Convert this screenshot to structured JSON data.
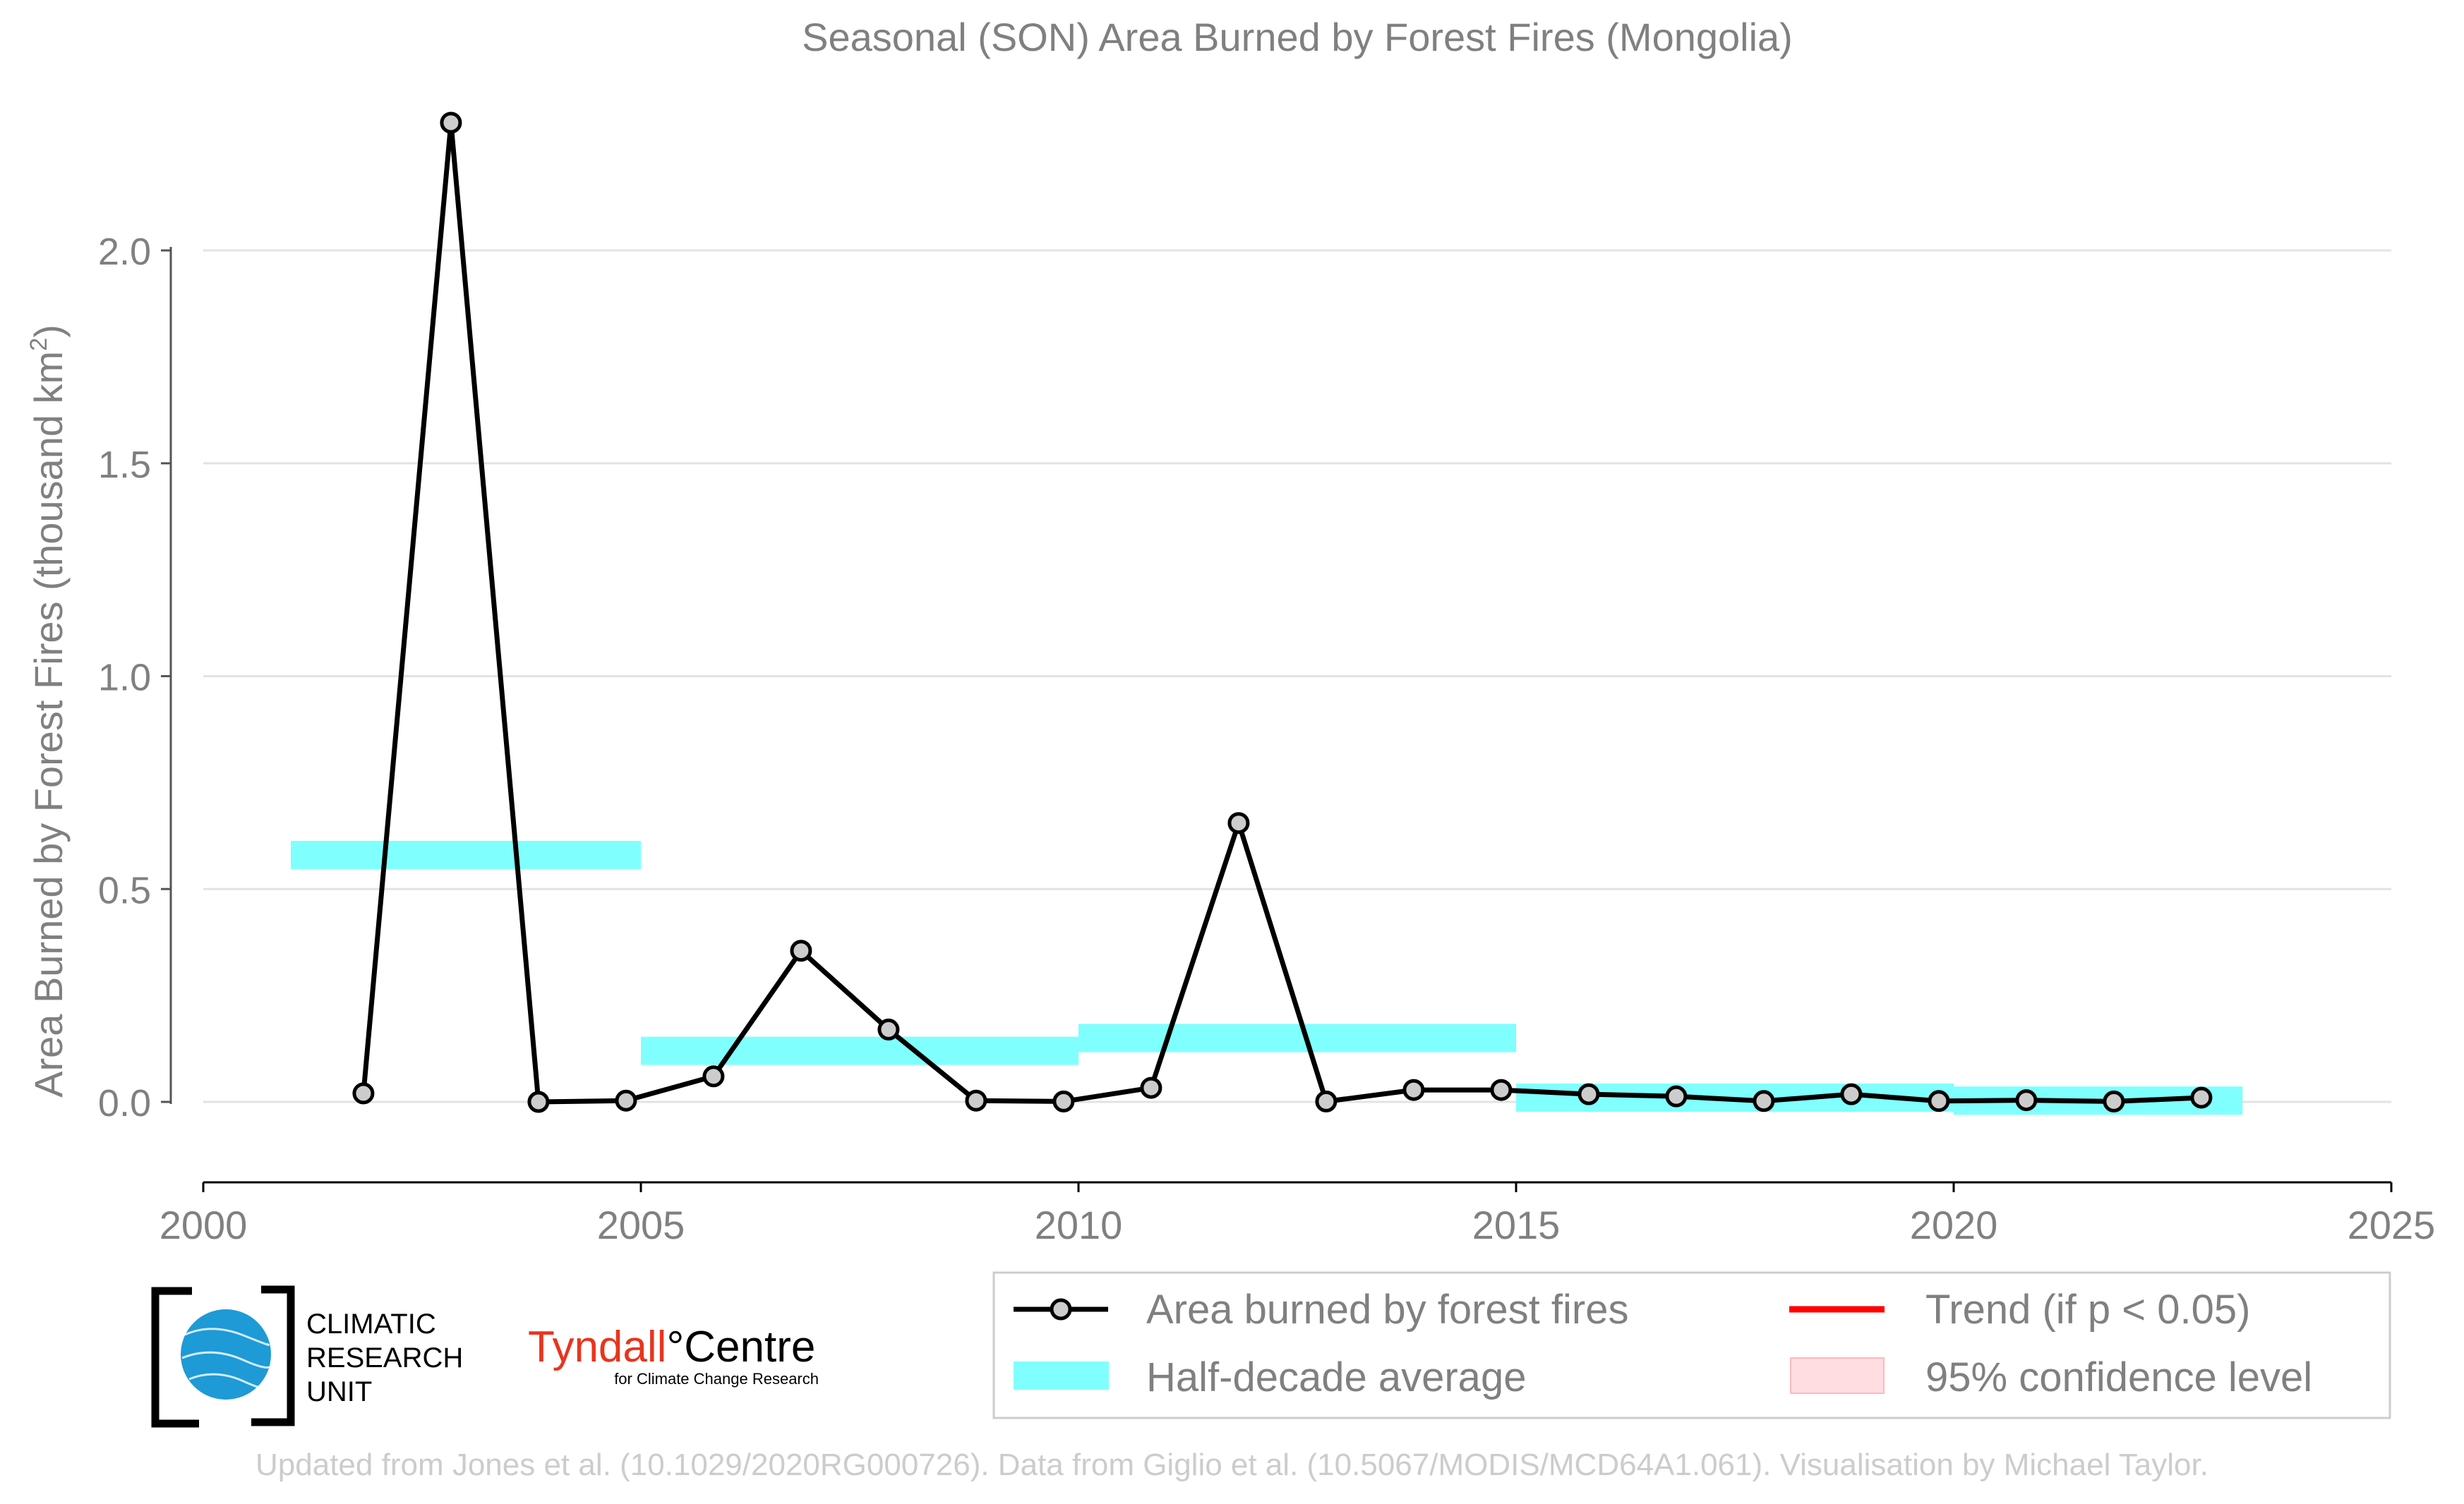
{
  "chart_data": {
    "type": "line",
    "title": "Seasonal (SON) Area Burned by Forest Fires (Mongolia)",
    "xlabel": "",
    "ylabel": "Area Burned by Forest Fires (thousand km²)",
    "ylabel_main": "Area Burned by Forest Fires (thousand km",
    "ylabel_sup": "2",
    "ylabel_close": ")",
    "xlim": [
      2000,
      2025
    ],
    "ylim": [
      -0.18,
      2.45
    ],
    "x_ticks": [
      "2000",
      "2005",
      "2010",
      "2015",
      "2020",
      "2025"
    ],
    "y_ticks": [
      "0.0",
      "0.5",
      "1.0",
      "1.5",
      "2.0"
    ],
    "y_tick_values": [
      0,
      0.5,
      1.0,
      1.5,
      2.0
    ],
    "x_tick_values": [
      2000,
      2005,
      2010,
      2015,
      2020,
      2025
    ],
    "grid": "horizontal",
    "series": [
      {
        "name": "Area burned by forest fires",
        "color": "#000000",
        "marker_fill": "#cccccc",
        "x": [
          2001.83,
          2002.83,
          2003.83,
          2004.83,
          2005.83,
          2006.83,
          2007.83,
          2008.83,
          2009.83,
          2010.83,
          2011.83,
          2012.83,
          2013.83,
          2014.83,
          2015.83,
          2016.83,
          2017.83,
          2018.83,
          2019.83,
          2020.83,
          2021.83,
          2022.83
        ],
        "values": [
          0.02,
          2.3,
          0.0,
          0.003,
          0.06,
          0.355,
          0.17,
          0.003,
          0.001,
          0.033,
          0.655,
          0.001,
          0.028,
          0.028,
          0.018,
          0.013,
          0.002,
          0.018,
          0.002,
          0.004,
          0.001,
          0.01
        ]
      }
    ],
    "half_decade_average": {
      "name": "Half-decade average",
      "color": "#80ffff",
      "periods": [
        {
          "start": 2001,
          "end": 2005,
          "value": 0.58
        },
        {
          "start": 2005,
          "end": 2010,
          "value": 0.12
        },
        {
          "start": 2010,
          "end": 2015,
          "value": 0.15
        },
        {
          "start": 2015,
          "end": 2020,
          "value": 0.01
        },
        {
          "start": 2020,
          "end": 2023.3,
          "value": 0.003
        }
      ]
    },
    "legend": {
      "placement": "bottom-right",
      "entries": [
        {
          "label": "Area burned by forest fires",
          "kind": "line-marker",
          "color": "#000000"
        },
        {
          "label": "Trend (if p < 0.05)",
          "kind": "line",
          "color": "#ff0000"
        },
        {
          "label": "Half-decade average",
          "kind": "band",
          "color": "#80ffff"
        },
        {
          "label": "95% confidence level",
          "kind": "patch",
          "color": "#ffdde0"
        }
      ]
    }
  },
  "logos": {
    "cru_line1": "CLIMATIC",
    "cru_line2": "RESEARCH",
    "cru_line3": "UNIT",
    "tyndall_main_a": "Tyndall",
    "tyndall_main_b": "°Centre",
    "tyndall_sub": "for Climate Change Research",
    "tyndall_color": "#e8351e",
    "cru_globe_color": "#1e9ad6"
  },
  "footer": "Updated from Jones et al. (10.1029/2020RG000726). Data from Giglio et al. (10.5067/MODIS/MCD64A1.061). Visualisation by Michael Taylor."
}
